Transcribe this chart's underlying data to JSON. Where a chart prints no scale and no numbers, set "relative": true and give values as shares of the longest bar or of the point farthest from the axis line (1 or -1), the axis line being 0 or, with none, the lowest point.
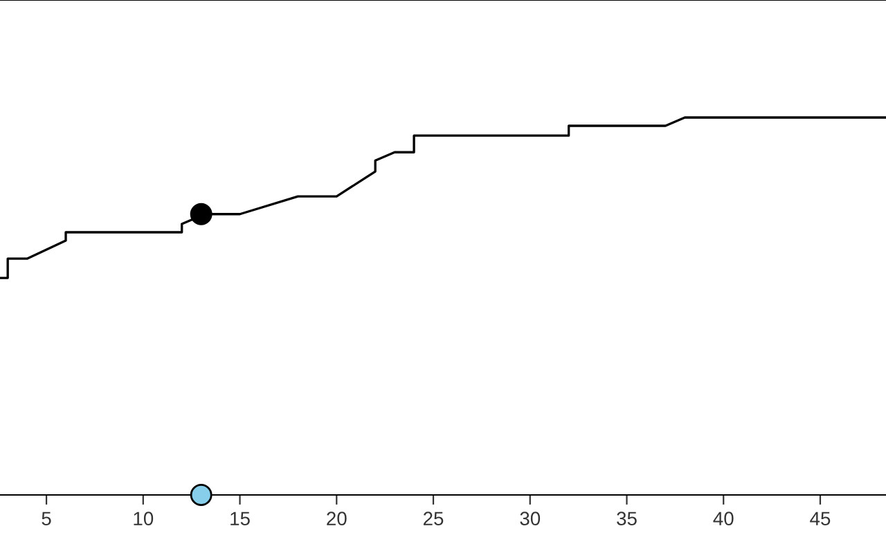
{
  "chart_data": {
    "type": "line",
    "relative": true,
    "xlim": [
      2.6,
      48.4
    ],
    "xticks": [
      5,
      10,
      15,
      20,
      25,
      30,
      35,
      40,
      45
    ],
    "tick_labels": "x",
    "grid": false,
    "series": [
      {
        "color": "#000000",
        "marker": "none",
        "x": [
          2.6,
          3,
          3,
          4,
          6,
          6,
          12,
          12,
          12.5,
          13,
          15,
          18,
          20,
          22,
          22,
          23,
          24,
          24,
          32,
          32,
          37,
          38,
          48.4
        ],
        "values": [
          0.575,
          0.575,
          0.626,
          0.626,
          0.674,
          0.696,
          0.696,
          0.718,
          0.729,
          0.744,
          0.744,
          0.791,
          0.791,
          0.857,
          0.886,
          0.908,
          0.908,
          0.952,
          0.952,
          0.978,
          0.978,
          1,
          1
        ]
      },
      {
        "type": "scatter",
        "color": "#000000",
        "marker": "circle",
        "x": [
          13
        ],
        "values": [
          0.744
        ]
      },
      {
        "type": "scatter",
        "color": "#87ceeb",
        "marker": "circle",
        "x": [
          13
        ],
        "values": [
          0
        ]
      }
    ]
  }
}
